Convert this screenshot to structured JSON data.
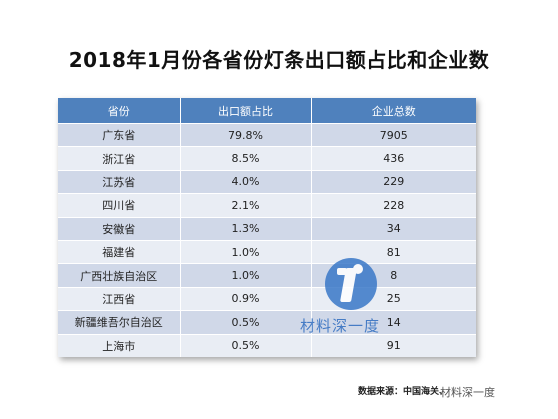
{
  "title": "2018年1月份各省份灯条出口额占比和企业数",
  "table": {
    "headers": [
      "省份",
      "出口额占比",
      "企业总数"
    ],
    "rows": [
      [
        "广东省",
        "79.8%",
        "7905"
      ],
      [
        "浙江省",
        "8.5%",
        "436"
      ],
      [
        "江苏省",
        "4.0%",
        "229"
      ],
      [
        "四川省",
        "2.1%",
        "228"
      ],
      [
        "安徽省",
        "1.3%",
        "34"
      ],
      [
        "福建省",
        "1.0%",
        "81"
      ],
      [
        "广西壮族自治区",
        "1.0%",
        "8"
      ],
      [
        "江西省",
        "0.9%",
        "25"
      ],
      [
        "新疆维吾尔自治区",
        "0.5%",
        "14"
      ],
      [
        "上海市",
        "0.5%",
        "91"
      ]
    ]
  },
  "watermark": {
    "text": "材料深一度"
  },
  "source": "数据来源：中国海关、",
  "corner_watermark": "材料深一度"
}
